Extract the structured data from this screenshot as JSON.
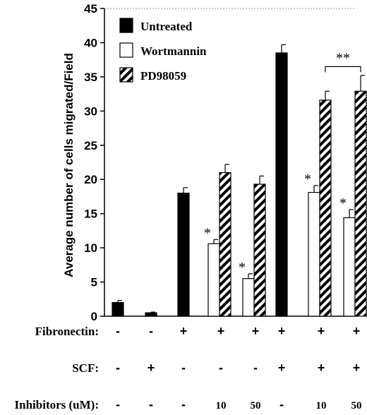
{
  "chart_data": {
    "type": "bar",
    "title": "",
    "xlabel": "",
    "ylabel": "Average number of cells migrated/Field",
    "ylim": [
      0,
      45
    ],
    "yticks": [
      "0",
      "5",
      "10",
      "15",
      "20",
      "25",
      "30",
      "35",
      "40",
      "45"
    ],
    "grid": false,
    "legend_position": "top-left",
    "series": [
      {
        "name": "Untreated",
        "fill": "solid-black"
      },
      {
        "name": "Wortmannin",
        "fill": "white"
      },
      {
        "name": "PD98059",
        "fill": "diagonal-hatch"
      }
    ],
    "bars": [
      {
        "group": 0,
        "series": "Untreated",
        "value": 2.0,
        "error": 0.3
      },
      {
        "group": 1,
        "series": "Untreated",
        "value": 0.5,
        "error": 0.1
      },
      {
        "group": 2,
        "series": "Untreated",
        "value": 18.0,
        "error": 0.8
      },
      {
        "group": 3,
        "series": "Wortmannin",
        "value": 10.6,
        "error": 0.6,
        "mark": "*"
      },
      {
        "group": 3,
        "series": "PD98059",
        "value": 21.0,
        "error": 1.2
      },
      {
        "group": 4,
        "series": "Wortmannin",
        "value": 5.5,
        "error": 0.7,
        "mark": "*"
      },
      {
        "group": 4,
        "series": "PD98059",
        "value": 19.3,
        "error": 1.2
      },
      {
        "group": 5,
        "series": "Untreated",
        "value": 38.5,
        "error": 1.2
      },
      {
        "group": 6,
        "series": "Wortmannin",
        "value": 18.1,
        "error": 1.0,
        "mark": "*"
      },
      {
        "group": 6,
        "series": "PD98059",
        "value": 31.6,
        "error": 1.3
      },
      {
        "group": 7,
        "series": "Wortmannin",
        "value": 14.4,
        "error": 1.2,
        "mark": "*"
      },
      {
        "group": 7,
        "series": "PD98059",
        "value": 32.9,
        "error": 2.3
      }
    ],
    "significance_bracket": {
      "from_group": 6,
      "to_group": 7,
      "label": "**"
    },
    "conditions": [
      {
        "label": "Fibronectin:",
        "values": [
          "-",
          "-",
          "+",
          "+",
          "+",
          "+",
          "+",
          "+"
        ]
      },
      {
        "label": "SCF:",
        "values": [
          "-",
          "+",
          "-",
          "-",
          "-",
          "+",
          "+",
          "+"
        ]
      },
      {
        "label": "Inhibitors (uM):",
        "values": [
          "-",
          "-",
          "-",
          "10",
          "50",
          "-",
          "10",
          "50"
        ]
      }
    ]
  }
}
